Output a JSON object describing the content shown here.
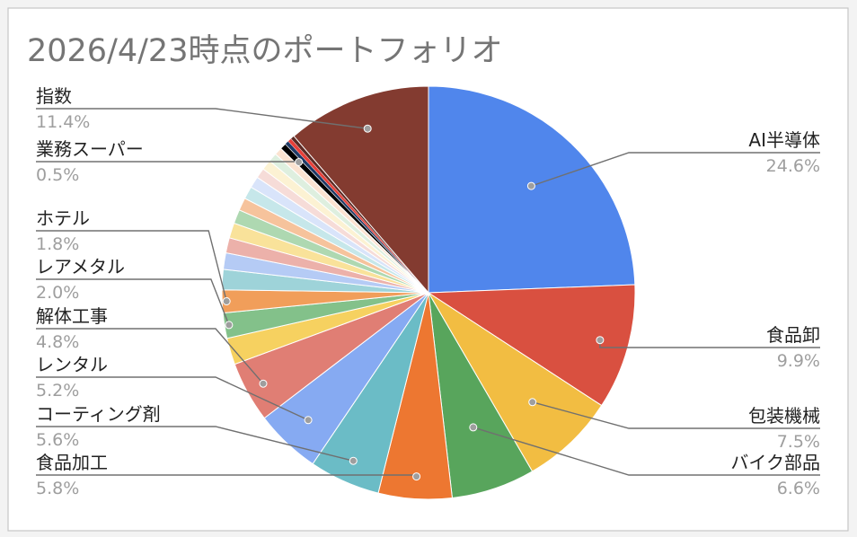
{
  "chart_data": {
    "type": "pie",
    "title": "2026/4/23時点のポートフォリオ",
    "slices": [
      {
        "label": "AI半導体",
        "value": 24.6,
        "display": "24.6%",
        "color": "#5086ec"
      },
      {
        "label": "食品卸",
        "value": 9.9,
        "display": "9.9%",
        "color": "#d95040"
      },
      {
        "label": "包装機械",
        "value": 7.5,
        "display": "7.5%",
        "color": "#f2bd42"
      },
      {
        "label": "バイク部品",
        "value": 6.6,
        "display": "6.6%",
        "color": "#58a55c"
      },
      {
        "label": "食品加工",
        "value": 5.8,
        "display": "5.8%",
        "color": "#ed7731"
      },
      {
        "label": "コーティング剤",
        "value": 5.6,
        "display": "5.6%",
        "color": "#6bbcc6"
      },
      {
        "label": "レンタル",
        "value": 5.2,
        "display": "5.2%",
        "color": "#86aaf2"
      },
      {
        "label": "解体工事",
        "value": 4.8,
        "display": "4.8%",
        "color": "#e07e74"
      },
      {
        "label": "",
        "value": 2.1,
        "display": "",
        "color": "#f6d160"
      },
      {
        "label": "レアメタル",
        "value": 2.0,
        "display": "2.0%",
        "color": "#83c18a"
      },
      {
        "label": "ホテル",
        "value": 1.8,
        "display": "1.8%",
        "color": "#f19e5a"
      },
      {
        "label": "",
        "value": 1.6,
        "display": "",
        "color": "#9ed3d9"
      },
      {
        "label": "",
        "value": 1.3,
        "display": "",
        "color": "#b5cbf5"
      },
      {
        "label": "",
        "value": 1.2,
        "display": "",
        "color": "#ecb1aa"
      },
      {
        "label": "",
        "value": 1.2,
        "display": "",
        "color": "#f9e29a"
      },
      {
        "label": "",
        "value": 1.1,
        "display": "",
        "color": "#aed8b1"
      },
      {
        "label": "",
        "value": 1.0,
        "display": "",
        "color": "#f6c39c"
      },
      {
        "label": "",
        "value": 1.0,
        "display": "",
        "color": "#c6e7ea"
      },
      {
        "label": "",
        "value": 0.9,
        "display": "",
        "color": "#d9e4fa"
      },
      {
        "label": "",
        "value": 0.8,
        "display": "",
        "color": "#f6dcd8"
      },
      {
        "label": "",
        "value": 0.8,
        "display": "",
        "color": "#fcf2d3"
      },
      {
        "label": "",
        "value": 0.7,
        "display": "",
        "color": "#deefdf"
      },
      {
        "label": "",
        "value": 0.6,
        "display": "",
        "color": "#fbe3d1"
      },
      {
        "label": "業務スーパー",
        "value": 0.5,
        "display": "0.5%",
        "color": "#000000"
      },
      {
        "label": "",
        "value": 0.3,
        "display": "",
        "color": "#1f3a66"
      },
      {
        "label": "",
        "value": 0.3,
        "display": "",
        "color": "#e8403a"
      },
      {
        "label": "",
        "value": 0.3,
        "display": "",
        "color": "#5c2a24"
      },
      {
        "label": "指数",
        "value": 11.4,
        "display": "11.4%",
        "color": "#833b30"
      }
    ]
  }
}
